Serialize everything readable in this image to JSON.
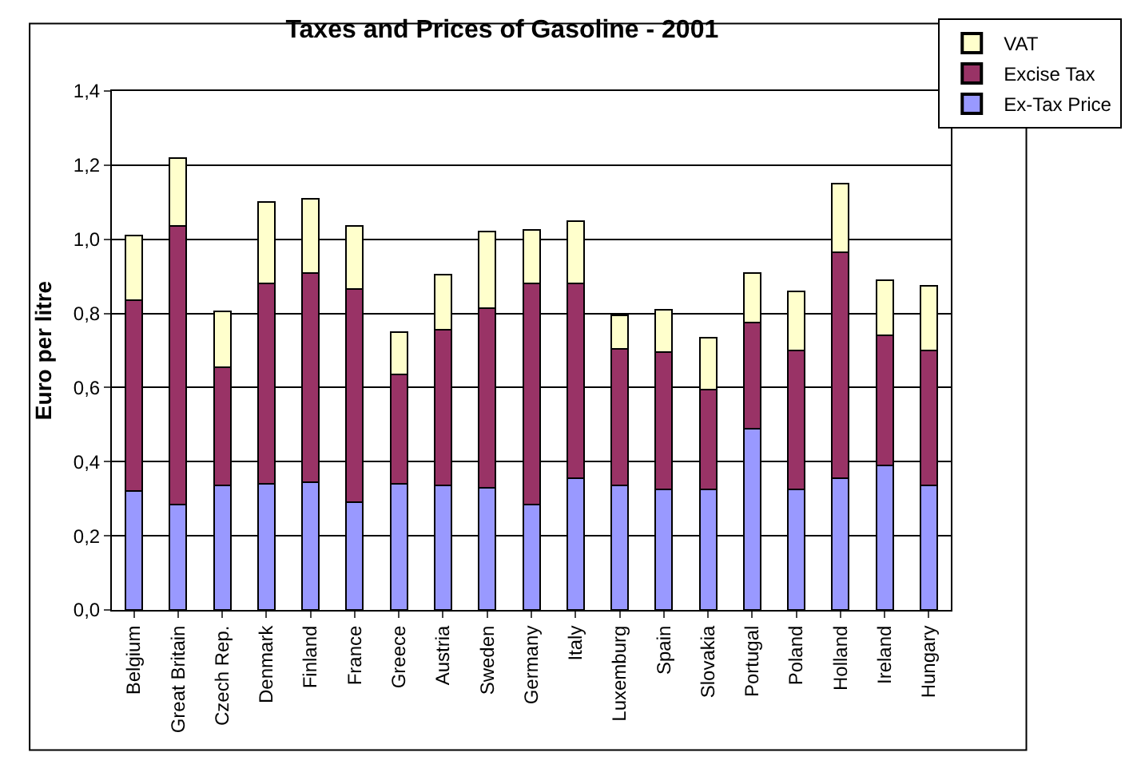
{
  "chart_data": {
    "type": "bar",
    "title": "Taxes and Prices of Gasoline - 2001",
    "ylabel": "Euro per litre",
    "categories": [
      "Belgium",
      "Great Britain",
      "Czech Rep.",
      "Denmark",
      "Finland",
      "France",
      "Greece",
      "Austria",
      "Sweden",
      "Germany",
      "Italy",
      "Luxemburg",
      "Spain",
      "Slovakia",
      "Portugal",
      "Poland",
      "Holland",
      "Ireland",
      "Hungary"
    ],
    "stacked": true,
    "series": [
      {
        "name": "Ex-Tax Price",
        "color": "#9999ff",
        "values": [
          0.32,
          0.285,
          0.335,
          0.34,
          0.345,
          0.29,
          0.34,
          0.335,
          0.33,
          0.285,
          0.355,
          0.335,
          0.325,
          0.325,
          0.49,
          0.325,
          0.355,
          0.39,
          0.335
        ]
      },
      {
        "name": "Excise Tax",
        "color": "#993366",
        "values": [
          0.515,
          0.75,
          0.32,
          0.54,
          0.565,
          0.575,
          0.295,
          0.42,
          0.485,
          0.595,
          0.525,
          0.37,
          0.37,
          0.27,
          0.285,
          0.375,
          0.61,
          0.35,
          0.365
        ]
      },
      {
        "name": "VAT",
        "color": "#ffffcc",
        "values": [
          0.175,
          0.185,
          0.15,
          0.22,
          0.2,
          0.17,
          0.115,
          0.15,
          0.205,
          0.145,
          0.17,
          0.09,
          0.115,
          0.14,
          0.135,
          0.16,
          0.185,
          0.15,
          0.175
        ]
      }
    ],
    "ylim": [
      0,
      1.4
    ],
    "yticks": [
      {
        "value": 0,
        "label": "0,0"
      },
      {
        "value": 0.2,
        "label": "0,2"
      },
      {
        "value": 0.4,
        "label": "0,4"
      },
      {
        "value": 0.6,
        "label": "0,6"
      },
      {
        "value": 0.8,
        "label": "0,8"
      },
      {
        "value": 1,
        "label": "1,0"
      },
      {
        "value": 1.2,
        "label": "1,2"
      },
      {
        "value": 1.4,
        "label": "1,4"
      }
    ],
    "grid": "y",
    "legend": "top right"
  }
}
